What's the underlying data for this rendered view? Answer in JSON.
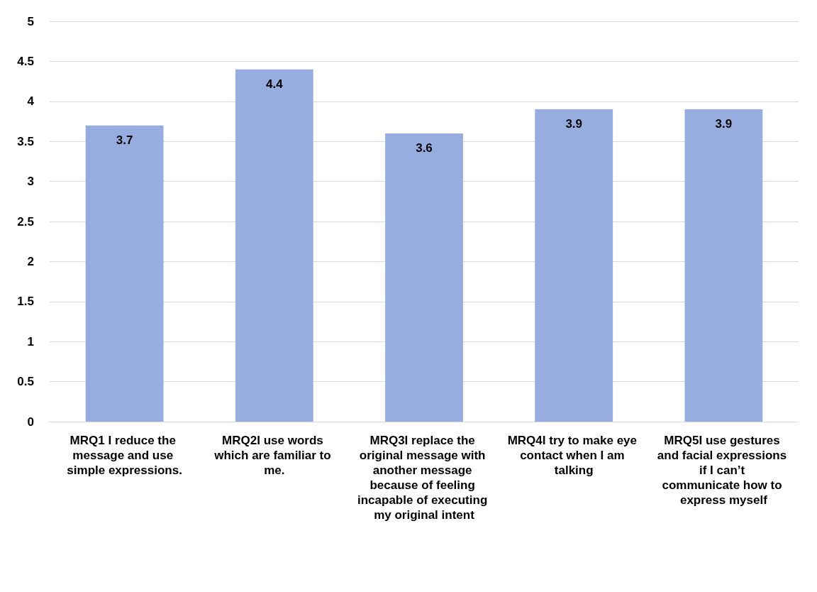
{
  "chart_data": {
    "type": "bar",
    "categories": [
      "MRQ1 I reduce the message and use simple expressions.",
      "MRQ2I use words which are familiar to me.",
      "MRQ3I replace the original message with another message because of feeling incapable of executing my original intent",
      "MRQ4I try to make eye contact when I am talking",
      "MRQ5I use gestures and facial expressions if I can’t communicate how to express myself"
    ],
    "values": [
      3.7,
      4.4,
      3.6,
      3.9,
      3.9
    ],
    "color": "#97acdf",
    "ylim": [
      0,
      5
    ],
    "yticks": [
      0,
      0.5,
      1,
      1.5,
      2,
      2.5,
      3,
      3.5,
      4,
      4.5,
      5
    ],
    "grid": "y",
    "data_labels": true
  }
}
